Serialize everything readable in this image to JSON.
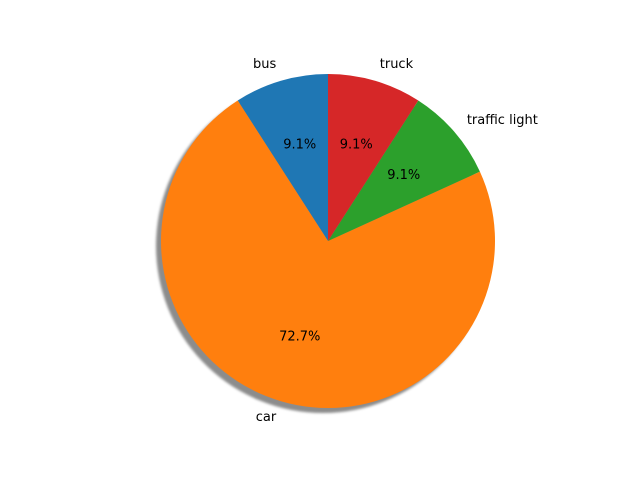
{
  "chart_data": {
    "type": "pie",
    "categories": [
      "bus",
      "car",
      "traffic light",
      "truck"
    ],
    "values": [
      1,
      8,
      1,
      1
    ],
    "pct_labels": [
      "9.1%",
      "72.7%",
      "9.1%",
      "9.1%"
    ],
    "colors": [
      "#1f77b4",
      "#ff7f0e",
      "#2ca02c",
      "#d62728"
    ],
    "start_angle_deg": 90,
    "direction": "counterclockwise",
    "shadow": true,
    "title": "",
    "legend": "none"
  }
}
